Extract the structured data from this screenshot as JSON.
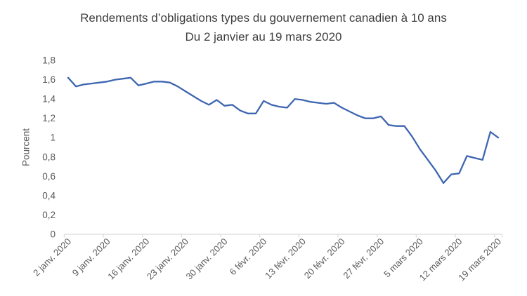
{
  "chart_data": {
    "type": "line",
    "title": "Rendements d’obligations types du gouvernement canadien à 10 ans",
    "subtitle": "Du 2 janvier au 19 mars 2020",
    "xlabel": "",
    "ylabel": "Pourcent",
    "ylim": [
      0,
      1.8
    ],
    "ytick_step": 0.2,
    "ytick_labels": [
      "0",
      "0,2",
      "0,4",
      "0,6",
      "0,8",
      "1",
      "1,2",
      "1,4",
      "1,6",
      "1,8"
    ],
    "xtick_labels": [
      "2 janv. 2020",
      "9 janv. 2020",
      "16 janv. 2020",
      "23 janv. 2020",
      "30 janv. 2020",
      "6 févr. 2020",
      "13 févr. 2020",
      "20 févr. 2020",
      "27 févr. 2020",
      "5 mars 2020",
      "12 mars 2020",
      "19 mars 2020"
    ],
    "xtick_every": 5,
    "x_dates": [
      "2 janv.",
      "3 janv.",
      "6 janv.",
      "7 janv.",
      "8 janv.",
      "9 janv.",
      "10 janv.",
      "13 janv.",
      "14 janv.",
      "15 janv.",
      "16 janv.",
      "17 janv.",
      "20 janv.",
      "21 janv.",
      "22 janv.",
      "23 janv.",
      "24 janv.",
      "27 janv.",
      "28 janv.",
      "29 janv.",
      "30 janv.",
      "31 janv.",
      "3 févr.",
      "4 févr.",
      "5 févr.",
      "6 févr.",
      "7 févr.",
      "10 févr.",
      "11 févr.",
      "12 févr.",
      "13 févr.",
      "14 févr.",
      "17 févr.",
      "18 févr.",
      "19 févr.",
      "20 févr.",
      "21 févr.",
      "24 févr.",
      "25 févr.",
      "26 févr.",
      "27 févr.",
      "28 févr.",
      "2 mars",
      "3 mars",
      "4 mars",
      "5 mars",
      "6 mars",
      "9 mars",
      "10 mars",
      "11 mars",
      "12 mars",
      "13 mars",
      "16 mars",
      "17 mars",
      "18 mars",
      "19 mars"
    ],
    "series": [
      {
        "values": [
          1.62,
          1.53,
          1.55,
          1.56,
          1.57,
          1.58,
          1.6,
          1.61,
          1.62,
          1.54,
          1.56,
          1.58,
          1.58,
          1.57,
          1.53,
          1.48,
          1.43,
          1.38,
          1.34,
          1.39,
          1.33,
          1.34,
          1.28,
          1.25,
          1.25,
          1.38,
          1.34,
          1.32,
          1.31,
          1.4,
          1.39,
          1.37,
          1.36,
          1.35,
          1.36,
          1.31,
          1.27,
          1.23,
          1.2,
          1.2,
          1.22,
          1.13,
          1.12,
          1.12,
          1.01,
          0.88,
          0.77,
          0.66,
          0.53,
          0.62,
          0.63,
          0.81,
          0.79,
          0.77,
          1.06,
          1.0
        ]
      }
    ],
    "grid": false,
    "legend": "none",
    "colors": {
      "line": "#3e66b0",
      "axis": "#d9d9d9",
      "tick_labels": "#595959",
      "title_text": "#3f3f3f",
      "background": "#ffffff"
    }
  }
}
